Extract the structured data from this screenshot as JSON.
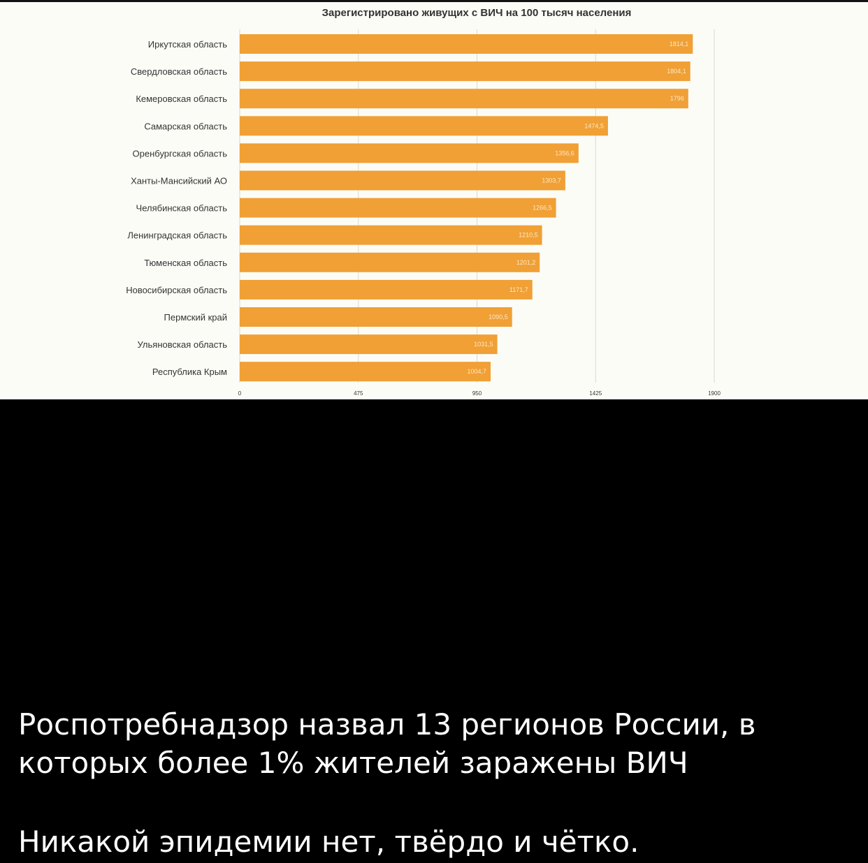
{
  "post": {
    "caption_line_1": "Роспотребнадзор назвал 13 регионов России, в",
    "caption_line_2": "которых более 1% жителей заражены ВИЧ",
    "caption_line_3": "Никакой эпидемии нет, твёрдо и чётко."
  },
  "colors": {
    "bar": "#f0a035",
    "chart_background": "#fcfcf7",
    "gridline": "#d9d9d2",
    "text": "#333333",
    "value_label": "#fde7c4"
  },
  "chart_data": {
    "type": "bar",
    "orientation": "horizontal",
    "title": "Зарегистрировано живущих с ВИЧ на 100 тысяч населения",
    "xlabel": "",
    "ylabel": "",
    "categories": [
      "Иркутская область",
      "Свердловская область",
      "Кемеровская область",
      "Самарская область",
      "Оренбургская область",
      "Ханты-Мансийский АО",
      "Челябинская область",
      "Ленинградская область",
      "Тюменская область",
      "Новосибирская область",
      "Пермский край",
      "Ульяновская область",
      "Республика Крым"
    ],
    "values": [
      1814.1,
      1804.1,
      1796,
      1474.5,
      1356.6,
      1303.7,
      1266.5,
      1210.5,
      1201.2,
      1171.7,
      1090.5,
      1031.5,
      1004.7
    ],
    "value_labels": [
      "1814,1",
      "1804,1",
      "1796",
      "1474,5",
      "1356,6",
      "1303,7",
      "1266,5",
      "1210,5",
      "1201,2",
      "1171,7",
      "1090,5",
      "1031,5",
      "1004,7"
    ],
    "xlim": [
      0,
      1900
    ],
    "xticks": [
      0,
      475,
      950,
      1425,
      1900
    ],
    "xtick_labels": [
      "0",
      "475",
      "950",
      "1425",
      "1900"
    ],
    "grid": true,
    "legend": "none"
  }
}
